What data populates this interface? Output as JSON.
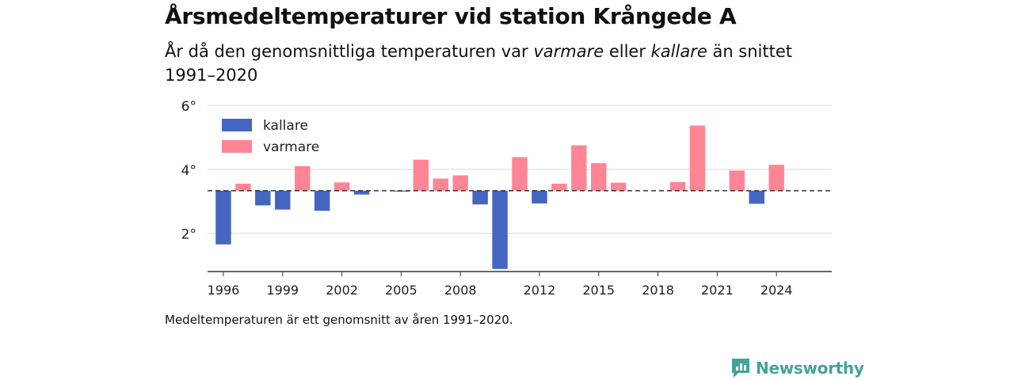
{
  "header": {
    "title": "Årsmedeltemperaturer vid station Krångede A",
    "subtitle_parts": {
      "p1": "År då den genomsnittliga temperaturen var ",
      "warm": "varmare",
      "p2": " eller ",
      "cold": "kallare",
      "p3": " än snittet 1991–2020"
    }
  },
  "footnote": "Medeltemperaturen är ett genomsnitt av åren 1991–2020.",
  "brand": {
    "name": "Newsworthy",
    "color": "#43a29a"
  },
  "chart_data": {
    "type": "bar",
    "baseline": 3.33,
    "ylim": [
      0.8,
      6.2
    ],
    "yticks": [
      2,
      4,
      6
    ],
    "ytick_labels": [
      "2°",
      "4°",
      "6°"
    ],
    "xlim": [
      1995.2,
      2026.8
    ],
    "xticks": [
      1996,
      1999,
      2002,
      2005,
      2008,
      2012,
      2015,
      2018,
      2021,
      2024
    ],
    "xtick_labels": [
      "1996",
      "1999",
      "2002",
      "2005",
      "2008",
      "2012",
      "2015",
      "2018",
      "2021",
      "2024"
    ],
    "grid": true,
    "legend_position": "top-left",
    "colors": {
      "kallare": "#4466c0",
      "varmare": "#ff8595"
    },
    "legend": [
      {
        "key": "kallare",
        "label": "kallare"
      },
      {
        "key": "varmare",
        "label": "varmare"
      }
    ],
    "data": [
      {
        "year": 1996,
        "value": 1.65
      },
      {
        "year": 1997,
        "value": 3.55
      },
      {
        "year": 1998,
        "value": 2.87
      },
      {
        "year": 1999,
        "value": 2.74
      },
      {
        "year": 2000,
        "value": 4.1
      },
      {
        "year": 2001,
        "value": 2.7
      },
      {
        "year": 2002,
        "value": 3.59
      },
      {
        "year": 2003,
        "value": 3.21
      },
      {
        "year": 2004,
        "value": 3.34
      },
      {
        "year": 2005,
        "value": 3.3
      },
      {
        "year": 2006,
        "value": 4.3
      },
      {
        "year": 2007,
        "value": 3.71
      },
      {
        "year": 2008,
        "value": 3.81
      },
      {
        "year": 2009,
        "value": 2.9
      },
      {
        "year": 2010,
        "value": 0.88
      },
      {
        "year": 2011,
        "value": 4.38
      },
      {
        "year": 2012,
        "value": 2.93
      },
      {
        "year": 2013,
        "value": 3.55
      },
      {
        "year": 2014,
        "value": 4.75
      },
      {
        "year": 2015,
        "value": 4.19
      },
      {
        "year": 2016,
        "value": 3.58
      },
      {
        "year": 2017,
        "value": 3.33
      },
      {
        "year": 2018,
        "value": 3.33
      },
      {
        "year": 2019,
        "value": 3.6
      },
      {
        "year": 2020,
        "value": 5.37
      },
      {
        "year": 2021,
        "value": 3.33
      },
      {
        "year": 2022,
        "value": 3.96
      },
      {
        "year": 2023,
        "value": 2.92
      },
      {
        "year": 2024,
        "value": 4.14
      }
    ]
  }
}
